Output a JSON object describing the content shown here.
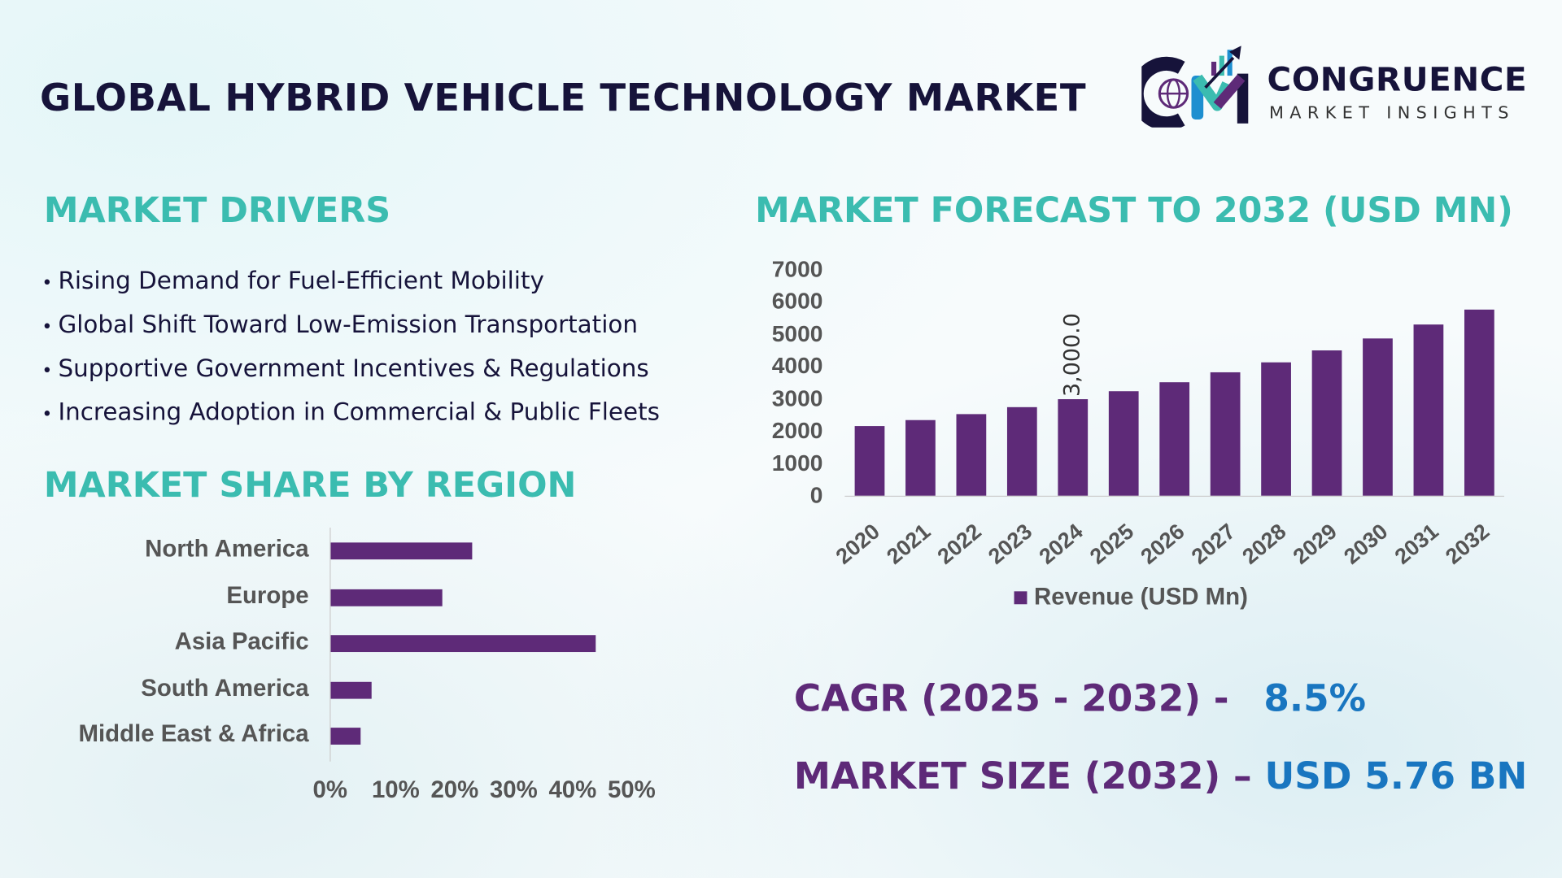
{
  "header": {
    "title": "GLOBAL HYBRID VEHICLE TECHNOLOGY MARKET"
  },
  "logo": {
    "name": "CONGRUENCE",
    "tagline": "MARKET INSIGHTS",
    "text": "CM"
  },
  "drivers": {
    "heading": "MARKET DRIVERS",
    "items": [
      "Rising Demand for Fuel-Efficient Mobility",
      "Global Shift Toward Low-Emission Transportation",
      "Supportive Government Incentives & Regulations",
      "Increasing Adoption in Commercial & Public Fleets"
    ]
  },
  "region": {
    "heading": "MARKET SHARE BY REGION"
  },
  "forecast": {
    "heading": "MARKET FORECAST TO 2032 (USD MN)"
  },
  "stats": {
    "cagr_label": "CAGR (2025 - 2032) -",
    "cagr_value": "8.5%",
    "size_label": "MARKET SIZE (2032) –",
    "size_value": "USD 5.76 BN"
  },
  "colors": {
    "bar": "#5e2a78",
    "heading": "#3bbcb0",
    "title": "#16133a",
    "value": "#1976c0"
  },
  "chart_data": [
    {
      "type": "bar",
      "orientation": "vertical",
      "categories": [
        "2020",
        "2021",
        "2022",
        "2023",
        "2024",
        "2025",
        "2026",
        "2027",
        "2028",
        "2029",
        "2030",
        "2031",
        "2032"
      ],
      "series": [
        {
          "name": "Revenue (USD Mn)",
          "values": [
            2160,
            2350,
            2530,
            2750,
            3000,
            3250,
            3520,
            3830,
            4140,
            4510,
            4880,
            5310,
            5760
          ]
        }
      ],
      "ylim": [
        0,
        7000
      ],
      "yticks": [
        "0",
        "1000",
        "2000",
        "3000",
        "4000",
        "5000",
        "6000",
        "7000"
      ],
      "data_labels": [
        {
          "category": "2024",
          "text": "3,000.0"
        }
      ],
      "legend": "bottom",
      "grid": false
    },
    {
      "type": "bar",
      "orientation": "horizontal",
      "categories": [
        "North America",
        "Europe",
        "Asia Pacific",
        "South America",
        "Middle East & Africa"
      ],
      "values": [
        24,
        19,
        45,
        7,
        5
      ],
      "unit": "%",
      "xlim": [
        0,
        50
      ],
      "xticks": [
        "0%",
        "10%",
        "20%",
        "30%",
        "40%",
        "50%"
      ],
      "grid": false
    }
  ]
}
